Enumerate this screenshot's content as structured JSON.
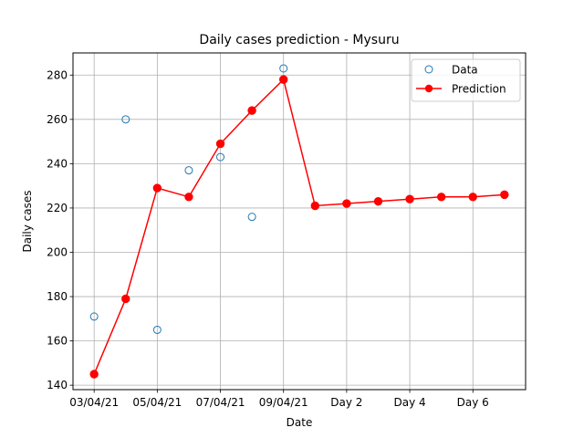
{
  "chart_data": {
    "type": "line",
    "title": "Daily cases prediction - Mysuru",
    "xlabel": "Date",
    "ylabel": "Daily cases",
    "x_ticks": [
      "03/04/21",
      "05/04/21",
      "07/04/21",
      "09/04/21",
      "Day 2",
      "Day 4",
      "Day 6"
    ],
    "x_tick_indices": [
      0,
      2,
      4,
      6,
      8,
      10,
      12
    ],
    "ylim": [
      138,
      290
    ],
    "y_ticks": [
      140,
      160,
      180,
      200,
      220,
      240,
      260,
      280
    ],
    "grid": true,
    "legend_position": "top-right",
    "series": [
      {
        "name": "Data",
        "style": "markers",
        "marker": "hollow-circle",
        "color": "#1f77b4",
        "x": [
          0,
          1,
          2,
          3,
          4,
          5,
          6
        ],
        "y": [
          171,
          260,
          165,
          237,
          243,
          216,
          283
        ]
      },
      {
        "name": "Prediction",
        "style": "line-markers",
        "marker": "filled-circle",
        "color": "#ff0000",
        "x": [
          0,
          1,
          2,
          3,
          4,
          5,
          6,
          7,
          8,
          9,
          10,
          11,
          12,
          13
        ],
        "y": [
          145,
          179,
          229,
          225,
          249,
          264,
          278,
          221,
          222,
          223,
          224,
          225,
          225,
          226
        ]
      }
    ]
  }
}
